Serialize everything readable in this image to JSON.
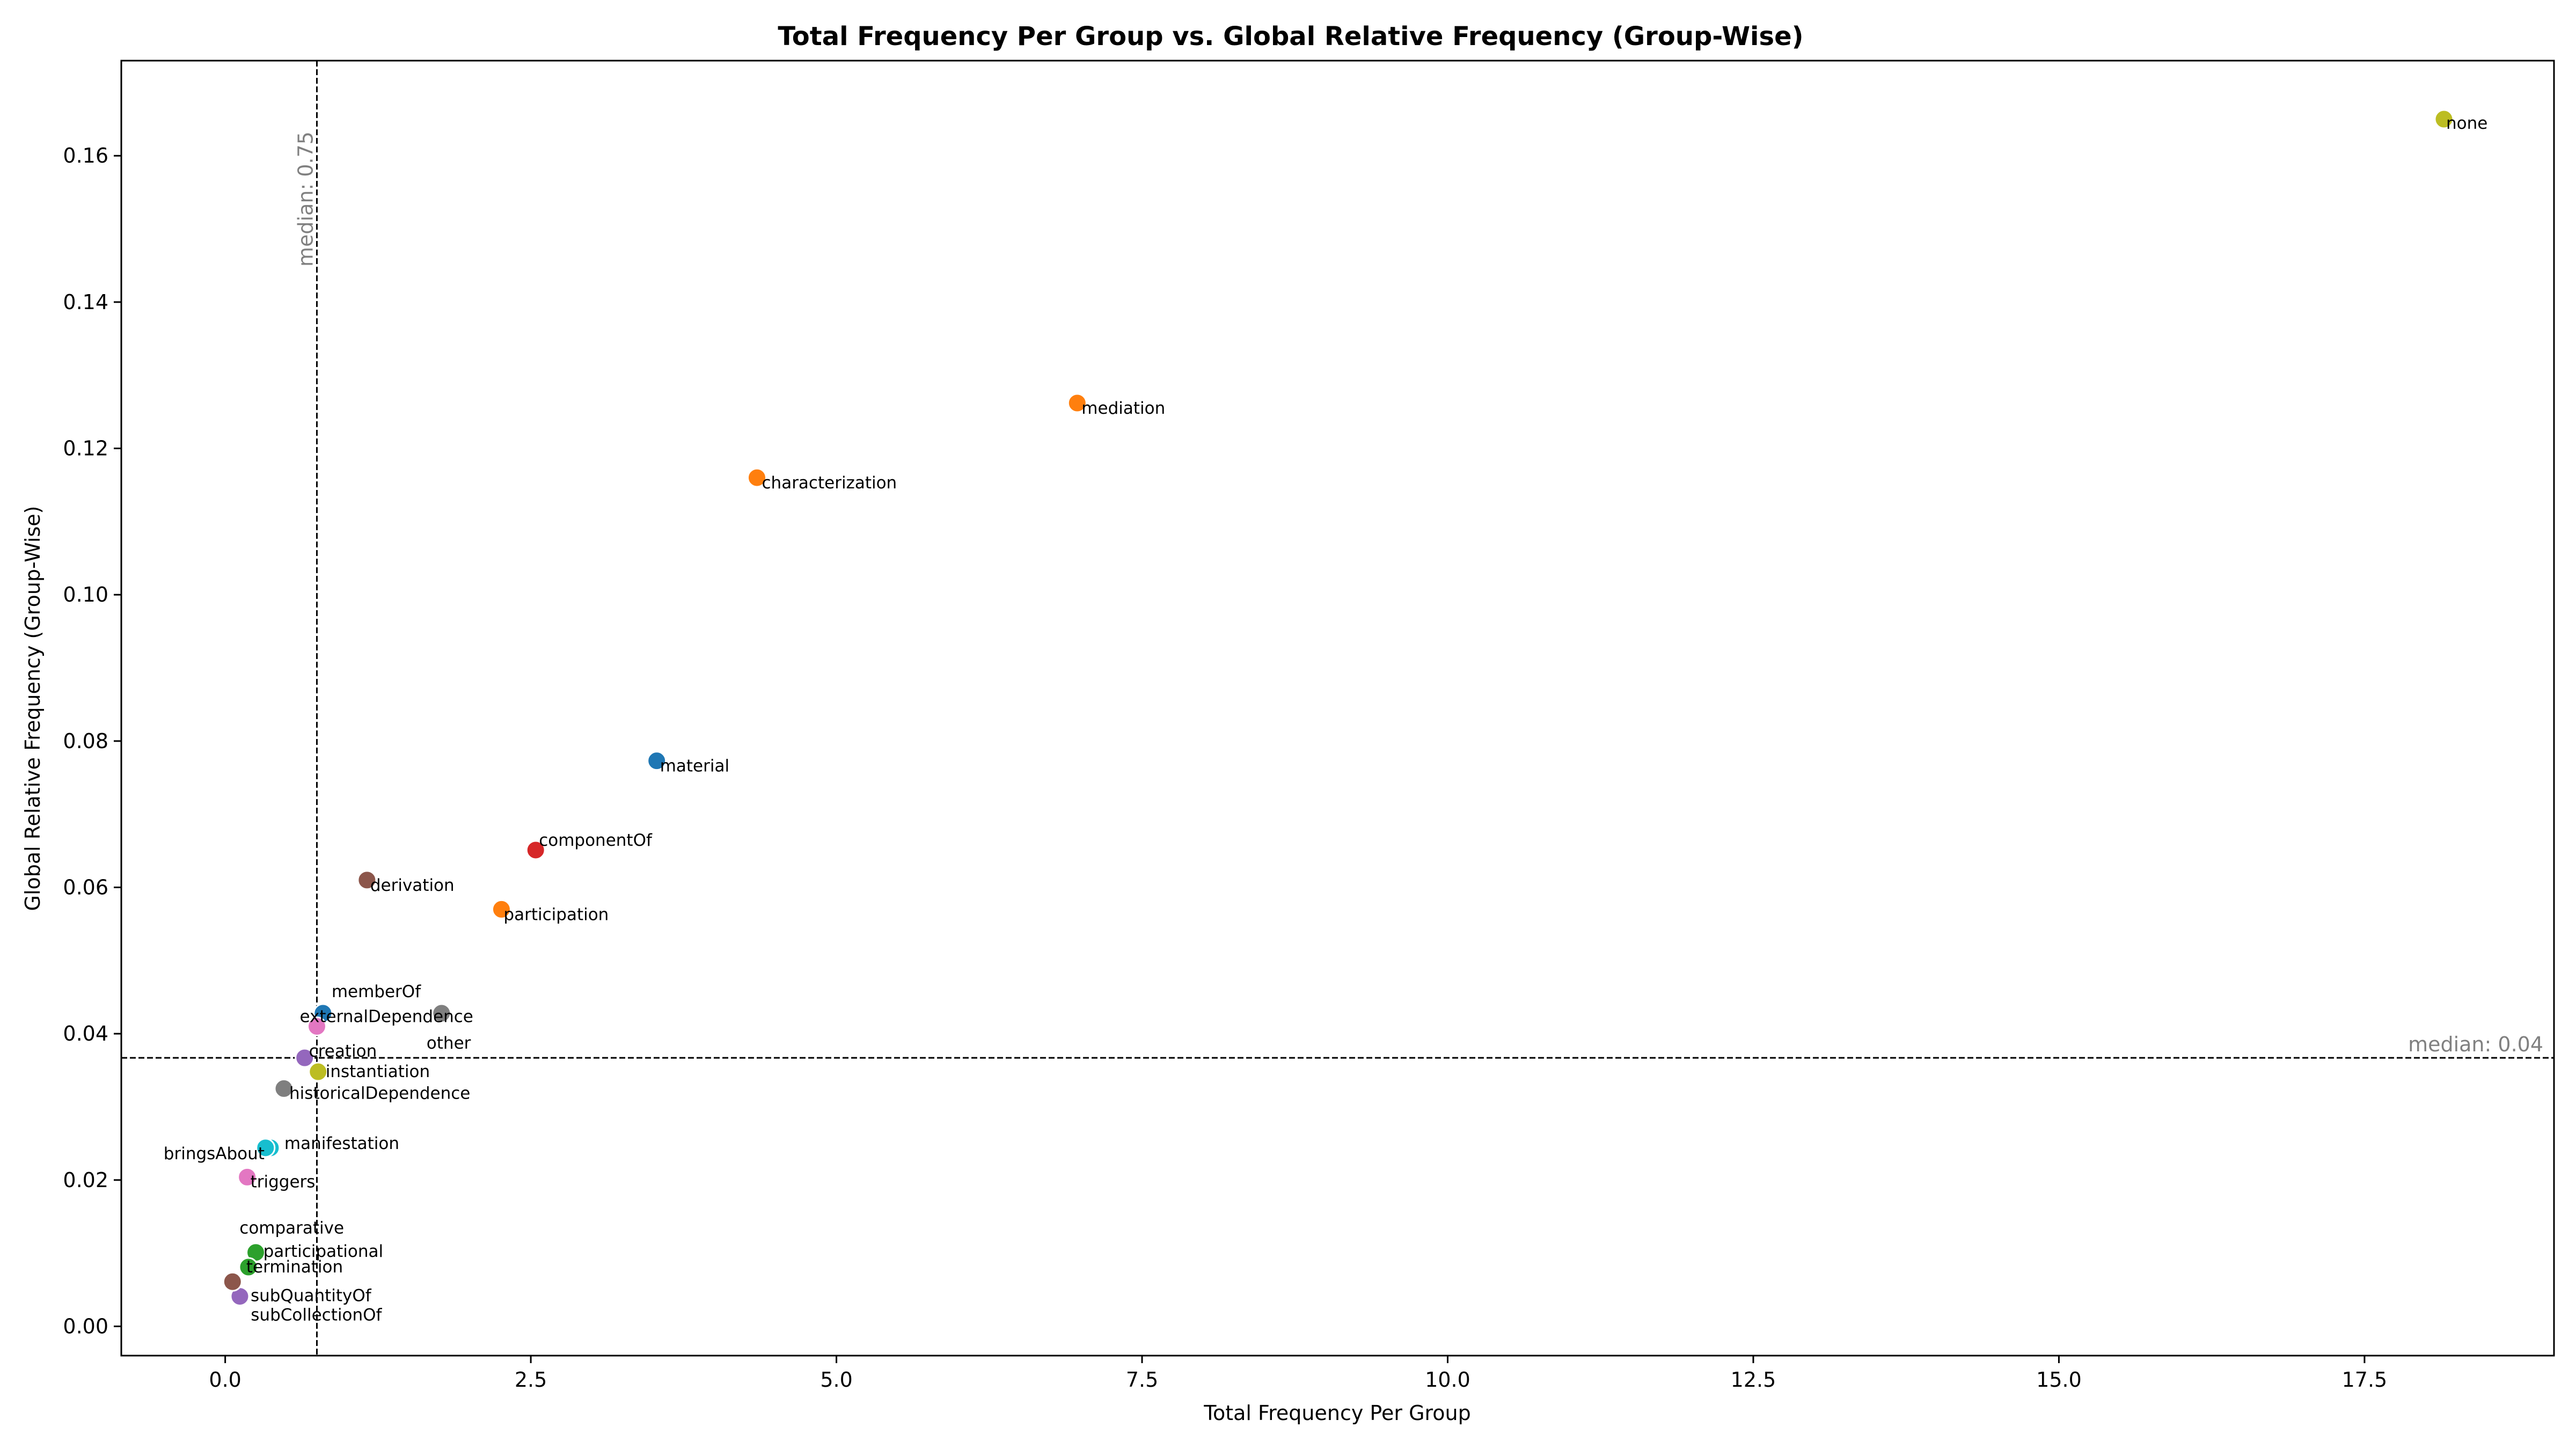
{
  "chart_data": {
    "type": "scatter",
    "title": "Total Frequency Per Group vs. Global Relative Frequency (Group-Wise)",
    "xlabel": "Total Frequency Per Group",
    "ylabel": "Global Relative Frequency (Group-Wise)",
    "xlim": [
      -0.85,
      19.05
    ],
    "ylim": [
      -0.004,
      0.173
    ],
    "xticks": [
      0.0,
      2.5,
      5.0,
      7.5,
      10.0,
      12.5,
      15.0,
      17.5
    ],
    "xtick_labels": [
      "0.0",
      "2.5",
      "5.0",
      "7.5",
      "10.0",
      "12.5",
      "15.0",
      "17.5"
    ],
    "yticks": [
      0.0,
      0.02,
      0.04,
      0.06,
      0.08,
      0.1,
      0.12,
      0.14,
      0.16
    ],
    "ytick_labels": [
      "0.00",
      "0.02",
      "0.04",
      "0.06",
      "0.08",
      "0.10",
      "0.12",
      "0.14",
      "0.16"
    ],
    "grid": false,
    "medians": {
      "x": 0.75,
      "y": 0.0367,
      "x_label": "median: 0.75",
      "y_label": "median: 0.04"
    },
    "points": [
      {
        "label": "none",
        "x": 18.15,
        "y": 0.165,
        "color": "#bcbd22"
      },
      {
        "label": "mediation",
        "x": 6.97,
        "y": 0.1262,
        "color": "#ff7f0e"
      },
      {
        "label": "characterization",
        "x": 4.35,
        "y": 0.116,
        "color": "#ff7f0e"
      },
      {
        "label": "material",
        "x": 3.53,
        "y": 0.0773,
        "color": "#1f77b4"
      },
      {
        "label": "componentOf",
        "x": 2.54,
        "y": 0.0651,
        "color": "#d62728"
      },
      {
        "label": "participation",
        "x": 2.26,
        "y": 0.057,
        "color": "#ff7f0e"
      },
      {
        "label": "derivation",
        "x": 1.16,
        "y": 0.061,
        "color": "#8c564b"
      },
      {
        "label": "other",
        "x": 1.77,
        "y": 0.0428,
        "color": "#7f7f7f"
      },
      {
        "label": "memberOf",
        "x": 0.8,
        "y": 0.0428,
        "color": "#1f77b4"
      },
      {
        "label": "externalDependence",
        "x": 0.75,
        "y": 0.041,
        "color": "#e377c2"
      },
      {
        "label": "creation",
        "x": 0.65,
        "y": 0.0367,
        "color": "#9467bd"
      },
      {
        "label": "instantiation",
        "x": 0.76,
        "y": 0.0348,
        "color": "#bcbd22"
      },
      {
        "label": "historicalDependence",
        "x": 0.48,
        "y": 0.0325,
        "color": "#7f7f7f"
      },
      {
        "label": "manifestation",
        "x": 0.37,
        "y": 0.0244,
        "color": "#17becf"
      },
      {
        "label": "bringsAbout",
        "x": 0.33,
        "y": 0.0244,
        "color": "#17becf"
      },
      {
        "label": "triggers",
        "x": 0.18,
        "y": 0.0204,
        "color": "#e377c2"
      },
      {
        "label": "comparative",
        "x": 0.24,
        "y": 0.0102,
        "color": "#2ca02c"
      },
      {
        "label": "participational",
        "x": 0.25,
        "y": 0.0101,
        "color": "#2ca02c"
      },
      {
        "label": "termination",
        "x": 0.19,
        "y": 0.0081,
        "color": "#2ca02c"
      },
      {
        "label": "subQuantityOf",
        "x": 0.12,
        "y": 0.0041,
        "color": "#9467bd"
      },
      {
        "label": "subCollectionOf",
        "x": 0.06,
        "y": 0.0061,
        "color": "#8c564b"
      }
    ]
  }
}
